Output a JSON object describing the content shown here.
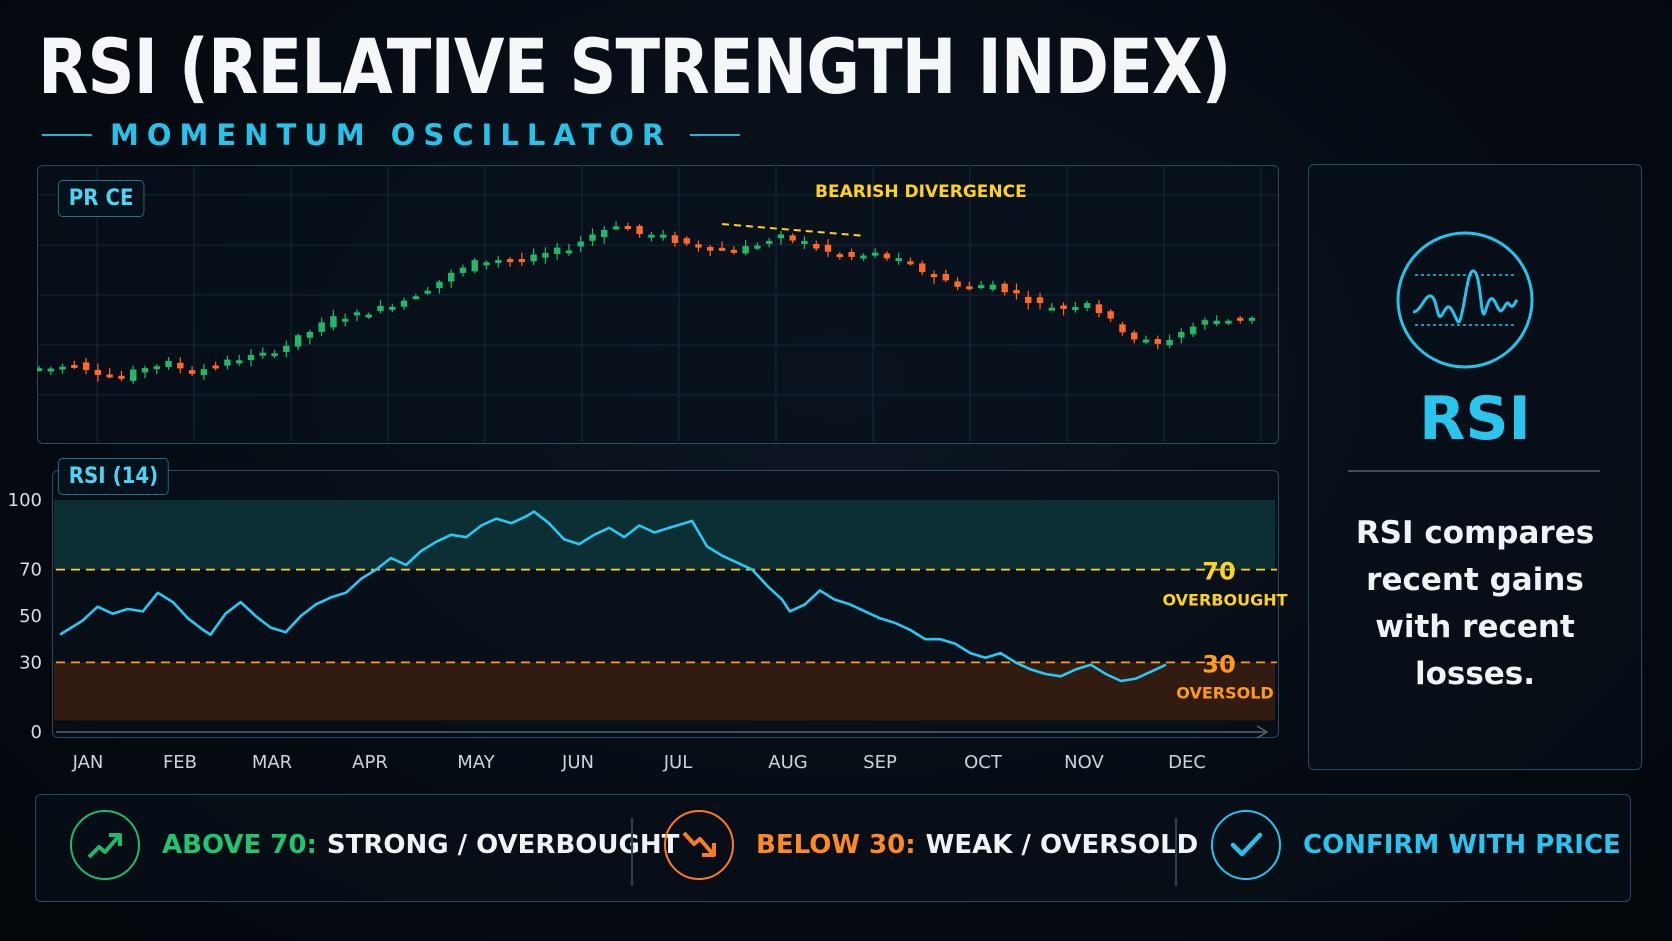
{
  "header": {
    "title": "RSI (RELATIVE STRENGTH INDEX)",
    "subtitle": "MOMENTUM OSCILLATOR"
  },
  "colors": {
    "accent": "#27c2ea",
    "bull": "#22b86a",
    "bear": "#ff6a26",
    "warning": "#ffd21f",
    "rsi_line": "#28c9f4",
    "overbought_zone": "#0d3a3e",
    "oversold_zone": "#3a1e10"
  },
  "price_panel": {
    "label": "PR CE",
    "annotation": "BEARISH DIVERGENCE"
  },
  "rsi_panel": {
    "label": "RSI (14)",
    "overbought_value": "70",
    "overbought_label": "OVERBOUGHT",
    "oversold_value": "30",
    "oversold_label": "OVERSOLD"
  },
  "chart_data": [
    {
      "type": "candlestick",
      "title": "",
      "x": [
        "JAN",
        "FEB",
        "MAR",
        "APR",
        "MAY",
        "JUN",
        "JUL",
        "AUG",
        "SEP",
        "OCT",
        "NOV",
        "DEC"
      ],
      "price_path": [
        [
          0,
          30
        ],
        [
          2,
          30
        ],
        [
          4,
          33
        ],
        [
          6,
          28
        ],
        [
          8,
          24
        ],
        [
          10,
          31
        ],
        [
          12,
          33
        ],
        [
          14,
          28
        ],
        [
          16,
          32
        ],
        [
          18,
          36
        ],
        [
          20,
          38
        ],
        [
          22,
          44
        ],
        [
          24,
          52
        ],
        [
          26,
          60
        ],
        [
          28,
          62
        ],
        [
          30,
          66
        ],
        [
          32,
          71
        ],
        [
          34,
          78
        ],
        [
          36,
          86
        ],
        [
          38,
          93
        ],
        [
          40,
          95
        ],
        [
          42,
          94
        ],
        [
          44,
          98
        ],
        [
          46,
          102
        ],
        [
          48,
          110
        ],
        [
          50,
          116
        ],
        [
          52,
          110
        ],
        [
          54,
          108
        ],
        [
          56,
          104
        ],
        [
          58,
          102
        ],
        [
          60,
          100
        ],
        [
          62,
          104
        ],
        [
          64,
          108
        ],
        [
          66,
          105
        ],
        [
          68,
          99
        ],
        [
          70,
          96
        ],
        [
          72,
          98
        ],
        [
          74,
          94
        ],
        [
          76,
          88
        ],
        [
          78,
          82
        ],
        [
          80,
          78
        ],
        [
          82,
          80
        ],
        [
          84,
          74
        ],
        [
          86,
          68
        ],
        [
          88,
          66
        ],
        [
          90,
          70
        ],
        [
          92,
          58
        ],
        [
          94,
          48
        ],
        [
          96,
          44
        ],
        [
          98,
          52
        ],
        [
          100,
          58
        ],
        [
          103,
          60
        ]
      ]
    },
    {
      "type": "line",
      "title": "",
      "x": [
        "JAN",
        "FEB",
        "MAR",
        "APR",
        "MAY",
        "JUN",
        "JUL",
        "AUG",
        "SEP",
        "OCT",
        "NOV",
        "DEC"
      ],
      "yticks": [
        0,
        30,
        50,
        70,
        100
      ],
      "ylim": [
        0,
        100
      ],
      "thresholds": [
        70,
        30
      ],
      "series": [
        {
          "values": [
            [
              0,
              42
            ],
            [
              3,
              48
            ],
            [
              5,
              54
            ],
            [
              7,
              51
            ],
            [
              9,
              53
            ],
            [
              11,
              52
            ],
            [
              13,
              60
            ],
            [
              15,
              56
            ],
            [
              17,
              49
            ],
            [
              19,
              44
            ],
            [
              20,
              42
            ],
            [
              22,
              51
            ],
            [
              24,
              56
            ],
            [
              26,
              50
            ],
            [
              28,
              45
            ],
            [
              30,
              43
            ],
            [
              32,
              50
            ],
            [
              34,
              55
            ],
            [
              36,
              58
            ],
            [
              38,
              60
            ],
            [
              40,
              66
            ],
            [
              42,
              70
            ],
            [
              44,
              75
            ],
            [
              46,
              72
            ],
            [
              48,
              78
            ],
            [
              50,
              82
            ],
            [
              52,
              85
            ],
            [
              54,
              84
            ],
            [
              56,
              89
            ],
            [
              58,
              92
            ],
            [
              60,
              90
            ],
            [
              62,
              93
            ],
            [
              63,
              95
            ],
            [
              65,
              90
            ],
            [
              67,
              83
            ],
            [
              69,
              81
            ],
            [
              71,
              85
            ],
            [
              73,
              88
            ],
            [
              75,
              84
            ],
            [
              77,
              89
            ],
            [
              79,
              86
            ],
            [
              81,
              88
            ],
            [
              83,
              90
            ],
            [
              84,
              91
            ],
            [
              86,
              80
            ],
            [
              88,
              76
            ],
            [
              90,
              73
            ],
            [
              92,
              70
            ],
            [
              94,
              63
            ],
            [
              96,
              57
            ],
            [
              97,
              52
            ],
            [
              99,
              55
            ],
            [
              101,
              61
            ],
            [
              103,
              57
            ],
            [
              105,
              55
            ],
            [
              107,
              52
            ],
            [
              109,
              49
            ],
            [
              111,
              47
            ],
            [
              113,
              44
            ],
            [
              115,
              40
            ],
            [
              117,
              40
            ],
            [
              119,
              38
            ],
            [
              121,
              34
            ],
            [
              123,
              32
            ],
            [
              125,
              34
            ],
            [
              127,
              30
            ],
            [
              129,
              27
            ],
            [
              131,
              25
            ],
            [
              133,
              24
            ],
            [
              135,
              27
            ],
            [
              137,
              29
            ],
            [
              139,
              25
            ],
            [
              141,
              22
            ],
            [
              143,
              23
            ],
            [
              145,
              26
            ],
            [
              147,
              29
            ]
          ]
        }
      ]
    }
  ],
  "side_card": {
    "title": "RSI",
    "description_lines": [
      "RSI compares",
      "recent gains",
      "with recent",
      "losses."
    ]
  },
  "footer": {
    "items": [
      {
        "key": "ABOVE 70:",
        "text": "STRONG / OVERBOUGHT",
        "icon": "trend-up-icon"
      },
      {
        "key": "BELOW 30:",
        "text": "WEAK / OVERSOLD",
        "icon": "trend-down-icon"
      },
      {
        "key": "",
        "text": "CONFIRM WITH PRICE",
        "icon": "check-icon"
      }
    ]
  }
}
